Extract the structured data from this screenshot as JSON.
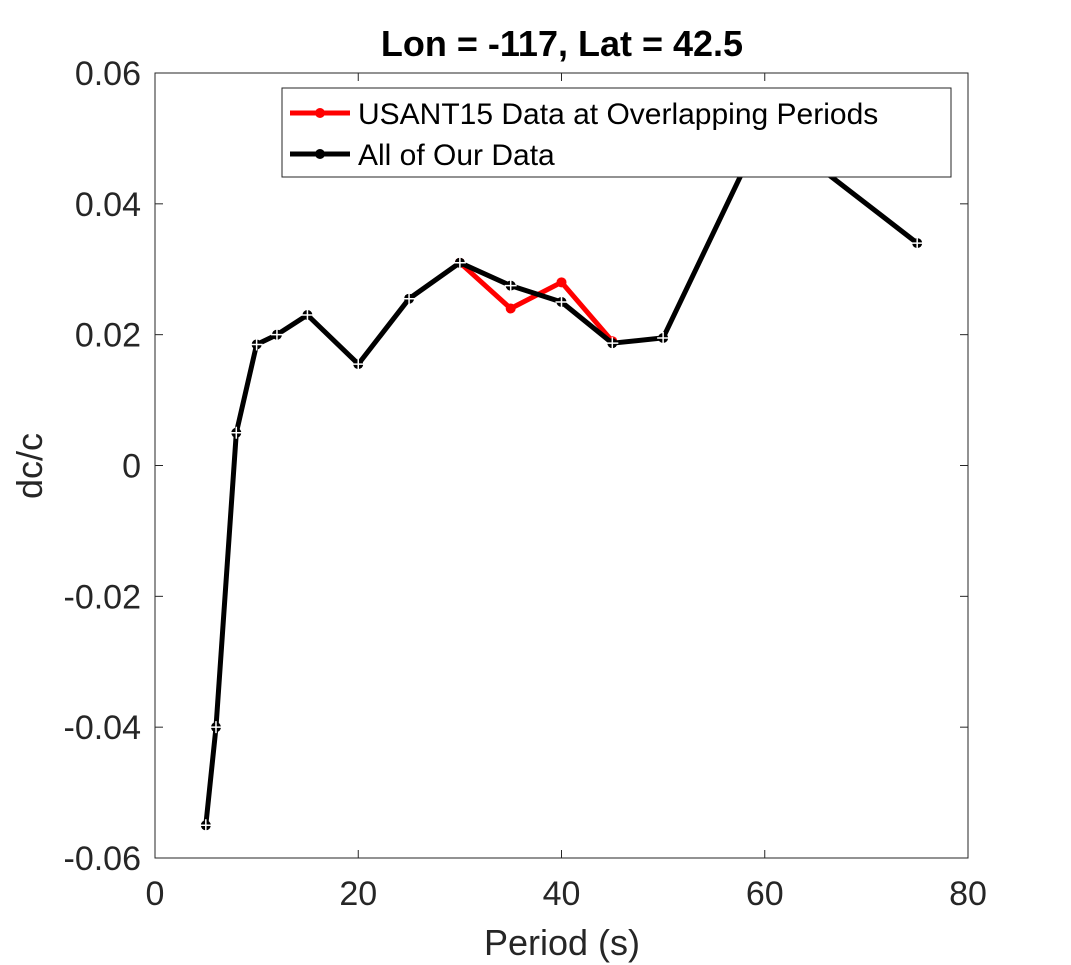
{
  "chart_data": {
    "type": "line",
    "title": "Lon = -117, Lat = 42.5",
    "xlabel": "Period (s)",
    "ylabel": "dc/c",
    "xlim": [
      0,
      80
    ],
    "ylim": [
      -0.06,
      0.06
    ],
    "xticks": [
      0,
      20,
      40,
      60,
      80
    ],
    "xtick_labels": [
      "0",
      "20",
      "40",
      "60",
      "80"
    ],
    "yticks": [
      -0.06,
      -0.04,
      -0.02,
      0,
      0.02,
      0.04,
      0.06
    ],
    "ytick_labels": [
      "-0.06",
      "-0.04",
      "-0.02",
      "0",
      "0.02",
      "0.04",
      "0.06"
    ],
    "grid": false,
    "legend_position": "top-right",
    "series": [
      {
        "name": "USANT15 Data at Overlapping Periods",
        "color": "#ff0000",
        "x": [
          30,
          35,
          40,
          45
        ],
        "y": [
          0.031,
          0.024,
          0.028,
          0.019
        ]
      },
      {
        "name": "All of Our Data",
        "color": "#000000",
        "x": [
          5,
          6,
          8,
          10,
          12,
          15,
          20,
          25,
          30,
          35,
          40,
          45,
          50,
          60,
          65,
          75
        ],
        "y": [
          -0.055,
          -0.04,
          0.005,
          0.0185,
          0.02,
          0.023,
          0.0155,
          0.0255,
          0.031,
          0.0275,
          0.025,
          0.0187,
          0.0195,
          0.052,
          0.046,
          0.034
        ]
      }
    ]
  }
}
